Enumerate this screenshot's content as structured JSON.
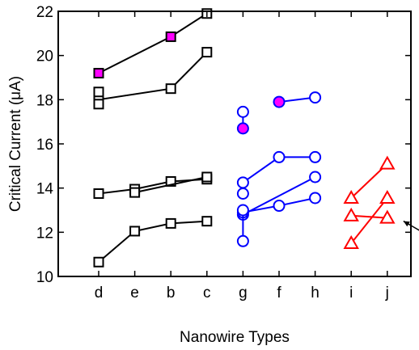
{
  "chart_data": {
    "type": "scatter",
    "title": "",
    "xlabel": "Nanowire Types",
    "ylabel": "Critical Current (μA)",
    "categories": [
      "d",
      "e",
      "b",
      "c",
      "g",
      "f",
      "h",
      "i",
      "j"
    ],
    "ylim": [
      10,
      22
    ],
    "yticks": [
      10,
      12,
      14,
      16,
      18,
      20,
      22
    ],
    "grid": false,
    "legend": "none",
    "colors": {
      "black": "#000000",
      "blue": "#0000ff",
      "red": "#ff0000",
      "magenta": "#ff00ff"
    },
    "series": [
      {
        "color": "black",
        "marker": "square",
        "points": [
          {
            "x": "d",
            "y": 19.2,
            "filled": true
          },
          {
            "x": "b",
            "y": 20.85,
            "filled": true
          },
          {
            "x": "c",
            "y": 21.9
          }
        ]
      },
      {
        "color": "black",
        "marker": "square",
        "points": [
          {
            "x": "d",
            "y": 18.0
          },
          {
            "x": "b",
            "y": 18.5
          },
          {
            "x": "c",
            "y": 20.15
          }
        ]
      },
      {
        "color": "black",
        "marker": "square",
        "points": [
          {
            "x": "d",
            "y": 18.35
          }
        ]
      },
      {
        "color": "black",
        "marker": "square",
        "points": [
          {
            "x": "d",
            "y": 17.8
          }
        ]
      },
      {
        "color": "black",
        "marker": "square",
        "points": [
          {
            "x": "d",
            "y": 13.75
          },
          {
            "x": "e",
            "y": 13.95
          },
          {
            "x": "b",
            "y": 14.3
          },
          {
            "x": "c",
            "y": 14.4
          }
        ]
      },
      {
        "color": "black",
        "marker": "square",
        "points": [
          {
            "x": "e",
            "y": 13.8
          },
          {
            "x": "c",
            "y": 14.5
          }
        ]
      },
      {
        "color": "black",
        "marker": "square",
        "points": [
          {
            "x": "d",
            "y": 10.65
          },
          {
            "x": "e",
            "y": 12.05
          },
          {
            "x": "b",
            "y": 12.4
          },
          {
            "x": "c",
            "y": 12.5
          }
        ]
      },
      {
        "color": "blue",
        "marker": "circle",
        "points": [
          {
            "x": "g",
            "y": 17.45
          },
          {
            "x": "g",
            "y": 16.7,
            "filled": true
          }
        ]
      },
      {
        "color": "blue",
        "marker": "circle",
        "points": [
          {
            "x": "f",
            "y": 17.9,
            "filled": true
          },
          {
            "x": "h",
            "y": 18.1
          }
        ]
      },
      {
        "color": "blue",
        "marker": "circle",
        "points": [
          {
            "x": "g",
            "y": 14.25
          },
          {
            "x": "f",
            "y": 15.4
          },
          {
            "x": "h",
            "y": 15.4
          }
        ]
      },
      {
        "color": "blue",
        "marker": "circle",
        "points": [
          {
            "x": "g",
            "y": 12.8
          },
          {
            "x": "h",
            "y": 14.5
          }
        ]
      },
      {
        "color": "blue",
        "marker": "circle",
        "points": [
          {
            "x": "g",
            "y": 12.9
          },
          {
            "x": "f",
            "y": 13.2
          },
          {
            "x": "h",
            "y": 13.55
          }
        ]
      },
      {
        "color": "blue",
        "marker": "circle",
        "points": [
          {
            "x": "g",
            "y": 11.6
          },
          {
            "x": "g",
            "y": 13.0
          }
        ]
      },
      {
        "color": "blue",
        "marker": "circle",
        "points": [
          {
            "x": "g",
            "y": 13.75
          }
        ]
      },
      {
        "color": "red",
        "marker": "triangle",
        "points": [
          {
            "x": "i",
            "y": 13.55
          },
          {
            "x": "j",
            "y": 15.1
          }
        ]
      },
      {
        "color": "red",
        "marker": "triangle",
        "points": [
          {
            "x": "i",
            "y": 11.5
          },
          {
            "x": "j",
            "y": 13.55
          }
        ]
      },
      {
        "color": "red",
        "marker": "triangle",
        "points": [
          {
            "x": "i",
            "y": 12.75
          },
          {
            "x": "j",
            "y": 12.65
          }
        ]
      }
    ],
    "annotations": [
      {
        "type": "arrow",
        "target": {
          "x": "j",
          "y": 12.65
        },
        "direction": "points-up-left-from-right"
      }
    ]
  }
}
